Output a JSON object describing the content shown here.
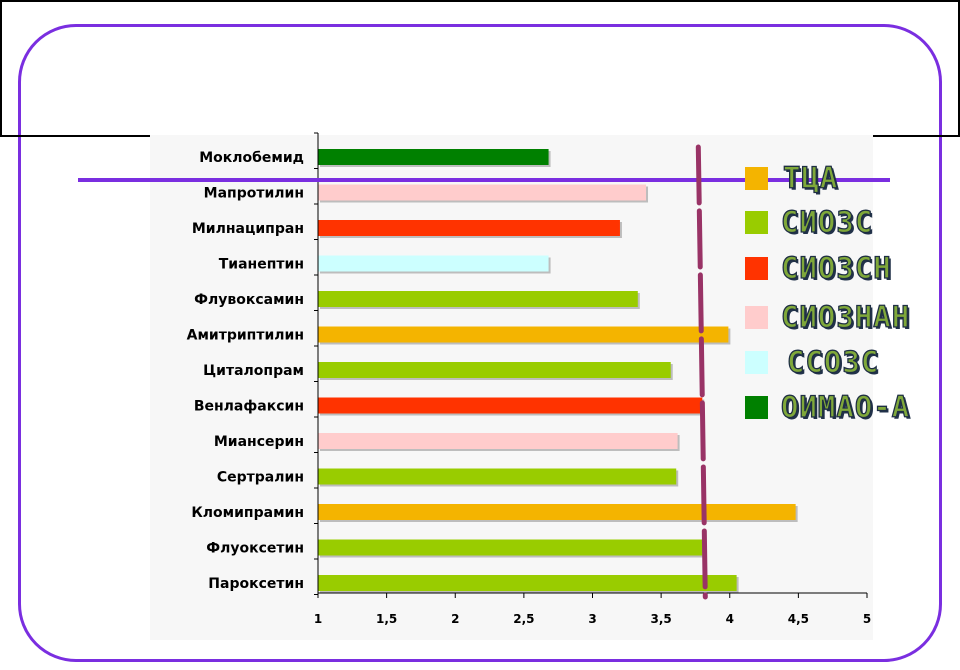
{
  "chart_data": {
    "type": "bar",
    "orientation": "horizontal",
    "categories": [
      "Моклобемид",
      "Мапротилин",
      "Милнаципран",
      "Тианептин",
      "Флувоксамин",
      "Амитриптилин",
      "Циталопрам",
      "Венлафаксин",
      "Миансерин",
      "Сертралин",
      "Кломипрамин",
      "Флуоксетин",
      "Пароксетин"
    ],
    "values": [
      2.68,
      3.39,
      3.2,
      2.68,
      3.33,
      3.99,
      3.57,
      3.8,
      3.62,
      3.61,
      4.48,
      3.8,
      4.05
    ],
    "groups": [
      "ОИМАО-А",
      "СИОЗНАН",
      "СИОЗСН",
      "ССОЗС",
      "СИОЗС",
      "ТЦА",
      "СИОЗС",
      "СИОЗСН",
      "СИОЗНАН",
      "СИОЗС",
      "ТЦА",
      "СИОЗС",
      "СИОЗС"
    ],
    "xlim": [
      1,
      5
    ],
    "xticks": [
      1,
      1.5,
      2,
      2.5,
      3,
      3.5,
      4,
      4.5,
      5
    ],
    "xtick_labels": [
      "1",
      "1,5",
      "2",
      "2,5",
      "3",
      "3,5",
      "4",
      "4,5",
      "5"
    ],
    "reference_line": 3.8,
    "grid": false,
    "legend_position": "right",
    "legend": [
      {
        "label": "ТЦА",
        "color": "#f4b400"
      },
      {
        "label": "СИОЗС",
        "color": "#99cc00"
      },
      {
        "label": "СИОЗСН",
        "color": "#ff3300"
      },
      {
        "label": "СИОЗНАН",
        "color": "#ffcccc"
      },
      {
        "label": "ССОЗС",
        "color": "#ccffff"
      },
      {
        "label": "ОИМАО-А",
        "color": "#008000"
      }
    ],
    "reference_line_color": "#993366"
  }
}
